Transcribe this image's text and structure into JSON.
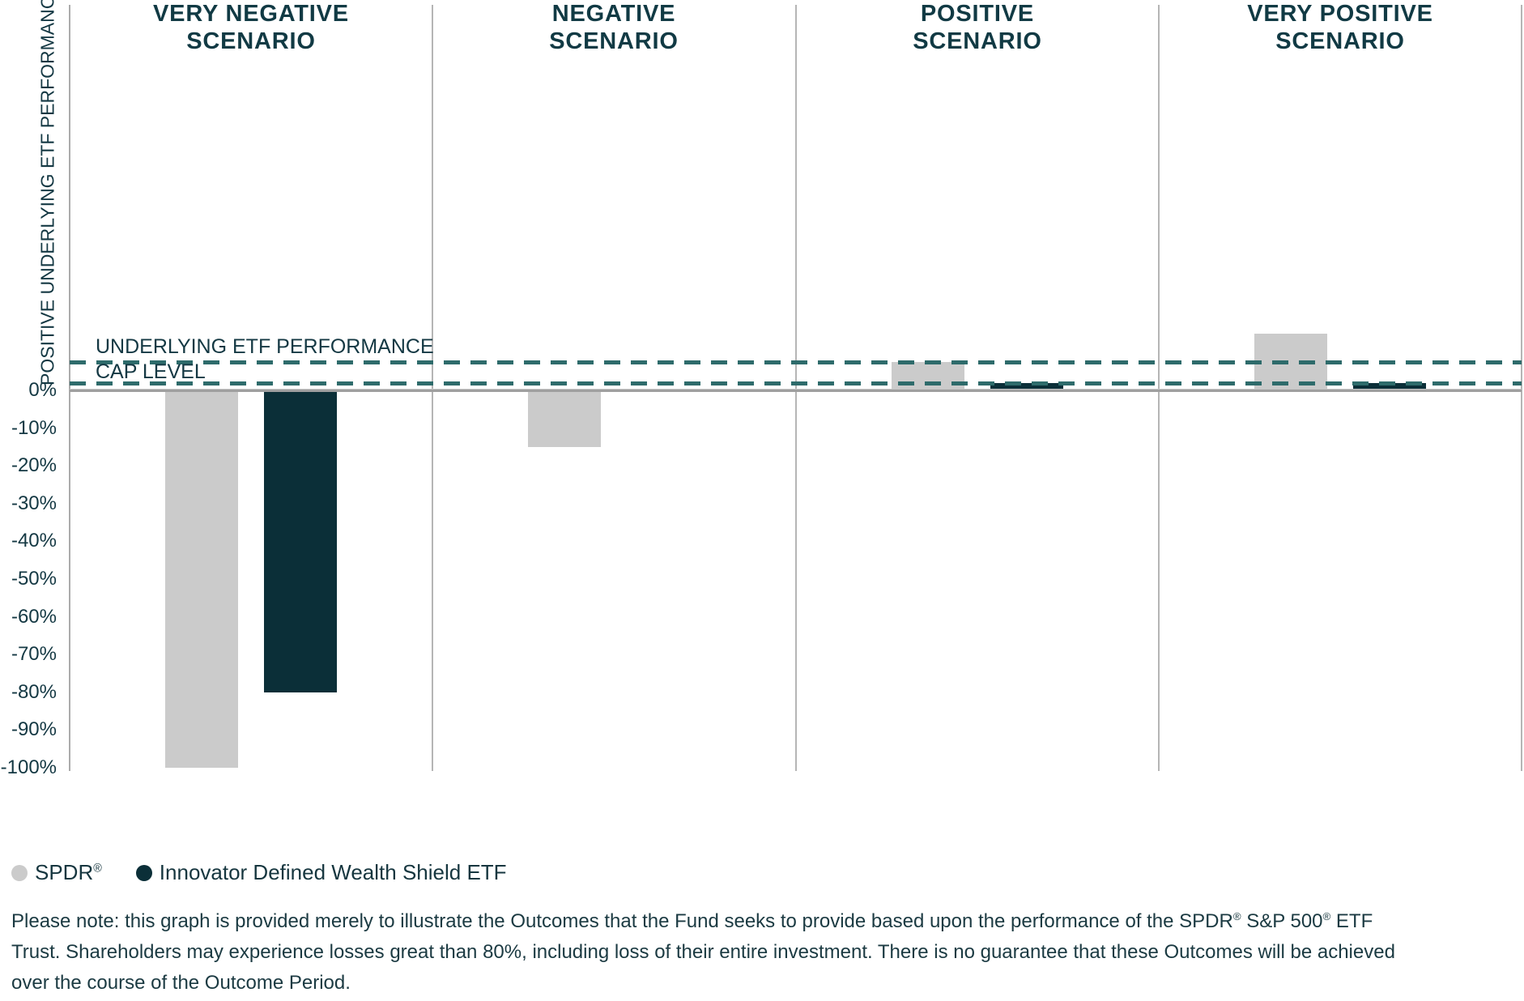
{
  "chart_data": {
    "type": "bar",
    "title": "",
    "ylabel": "POSITIVE UNDERLYING ETF PERFORMANCE",
    "categories": [
      "VERY NEGATIVE\nSCENARIO",
      "NEGATIVE\nSCENARIO",
      "POSITIVE\nSCENARIO",
      "VERY POSITIVE\nSCENARIO"
    ],
    "series": [
      {
        "key": "spdr",
        "name": "SPDR®",
        "color": "#cbcbcb",
        "values": [
          -100,
          -15,
          7.5,
          15
        ]
      },
      {
        "key": "innovator",
        "name": "Innovator Defined Wealth Shield ETF",
        "color": "#0b2f38",
        "values": [
          -80,
          0,
          2,
          2
        ]
      }
    ],
    "reference_lines": [
      {
        "label": "UNDERLYING ETF PERFORMANCE",
        "value": 7.5,
        "color": "#2e6b6b",
        "style": "dashed"
      },
      {
        "label": "CAP LEVEL",
        "value": 2,
        "color": "#2e6b6b",
        "style": "dashed"
      }
    ],
    "yticks": [
      {
        "label": "0%",
        "value": 0
      },
      {
        "label": "-10%",
        "value": -10
      },
      {
        "label": "-20%",
        "value": -20
      },
      {
        "label": "-30%",
        "value": -30
      },
      {
        "label": "-40%",
        "value": -40
      },
      {
        "label": "-50%",
        "value": -50
      },
      {
        "label": "-60%",
        "value": -60
      },
      {
        "label": "-70%",
        "value": -70
      },
      {
        "label": "-80%",
        "value": -80
      },
      {
        "label": "-90%",
        "value": -90
      },
      {
        "label": "-100%",
        "value": -100
      }
    ],
    "ylim": [
      -100,
      20
    ],
    "grid": "vertical-column-dividers",
    "legend_position": "bottom-left"
  },
  "legend": {
    "items": [
      {
        "label": "SPDR®",
        "color": "#cbcbcb"
      },
      {
        "label": "Innovator Defined Wealth Shield ETF",
        "color": "#0b2f38"
      }
    ]
  },
  "footnote": {
    "lines": [
      "Please note: this graph is provided merely to illustrate the Outcomes that the Fund seeks to provide based upon the performance of the SPDR® S&P 500® ETF",
      "Trust. Shareholders may experience losses great than 80%, including loss of their entire investment. There is no guarantee that these Outcomes will be achieved",
      "over the course of the Outcome Period."
    ]
  },
  "colors": {
    "text": "#143843",
    "header_text": "#113a44",
    "axis_line": "#b5b5b5",
    "zero_line": "#a0a0a0",
    "dash_teal": "#2e6b6b",
    "bar_gray": "#cbcbcb",
    "bar_dark": "#0b2f38",
    "background": "#ffffff"
  }
}
